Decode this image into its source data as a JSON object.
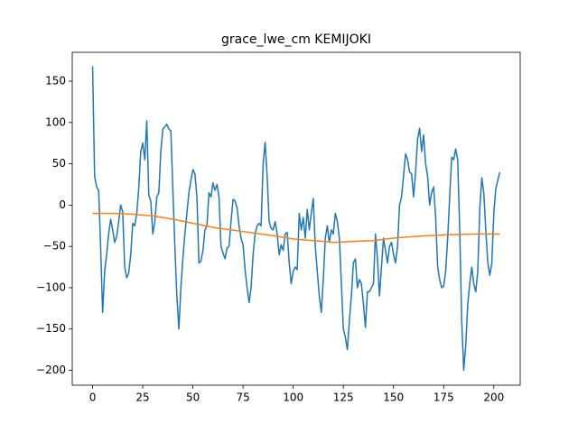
{
  "chart_data": {
    "type": "line",
    "title": "grace_lwe_cm KEMIJOKI",
    "xlim": [
      -10.15,
      213.15
    ],
    "ylim": [
      -218,
      185
    ],
    "xticks": [
      0,
      25,
      50,
      75,
      100,
      125,
      150,
      175,
      200
    ],
    "yticks": [
      {
        "value": -200,
        "label": "−200"
      },
      {
        "value": -150,
        "label": "−150"
      },
      {
        "value": -100,
        "label": "−100"
      },
      {
        "value": -50,
        "label": "−50"
      },
      0,
      50,
      100,
      150
    ],
    "series": [
      {
        "color": "#1f77b4",
        "x": [
          0,
          1,
          2,
          3,
          4,
          5,
          6,
          7,
          8,
          9,
          10,
          11,
          12,
          13,
          14,
          15,
          16,
          17,
          18,
          19,
          20,
          21,
          22,
          23,
          24,
          25,
          26,
          27,
          28,
          29,
          30,
          31,
          32,
          33,
          34,
          35,
          36,
          37,
          38,
          39,
          40,
          41,
          42,
          43,
          44,
          45,
          46,
          47,
          48,
          49,
          50,
          51,
          52,
          53,
          54,
          55,
          56,
          57,
          58,
          59,
          60,
          61,
          62,
          63,
          64,
          65,
          66,
          67,
          68,
          69,
          70,
          71,
          72,
          73,
          74,
          75,
          76,
          77,
          78,
          79,
          80,
          81,
          82,
          83,
          84,
          85,
          86,
          87,
          88,
          89,
          90,
          91,
          92,
          93,
          94,
          95,
          96,
          97,
          98,
          99,
          100,
          101,
          102,
          103,
          104,
          105,
          106,
          107,
          108,
          109,
          110,
          111,
          112,
          113,
          114,
          115,
          116,
          117,
          118,
          119,
          120,
          121,
          122,
          123,
          124,
          125,
          126,
          127,
          128,
          129,
          130,
          131,
          132,
          133,
          134,
          135,
          136,
          137,
          138,
          139,
          140,
          141,
          142,
          143,
          144,
          145,
          146,
          147,
          148,
          149,
          150,
          151,
          152,
          153,
          154,
          155,
          156,
          157,
          158,
          159,
          160,
          161,
          162,
          163,
          164,
          165,
          166,
          167,
          168,
          169,
          170,
          171,
          172,
          173,
          174,
          175,
          176,
          177,
          178,
          179,
          180,
          181,
          182,
          183,
          184,
          185,
          186,
          187,
          188,
          189,
          190,
          191,
          192,
          193,
          194,
          195,
          196,
          197,
          198,
          199,
          200,
          201,
          202,
          203
        ],
        "values": [
          168,
          35,
          22,
          18,
          -50,
          -130,
          -80,
          -60,
          -35,
          -17,
          -30,
          -45,
          -38,
          -20,
          0,
          -8,
          -75,
          -88,
          -82,
          -60,
          -22,
          -25,
          -10,
          20,
          65,
          75,
          55,
          102,
          12,
          5,
          -35,
          -20,
          10,
          15,
          65,
          92,
          95,
          98,
          92,
          90,
          20,
          -50,
          -110,
          -150,
          -100,
          -65,
          -35,
          -10,
          15,
          30,
          43,
          38,
          10,
          -70,
          -68,
          -55,
          -30,
          -25,
          15,
          10,
          27,
          18,
          25,
          10,
          -50,
          -58,
          -65,
          -52,
          -50,
          -20,
          7,
          5,
          -3,
          -25,
          -40,
          -48,
          -78,
          -100,
          -118,
          -100,
          -60,
          -35,
          -25,
          -22,
          -25,
          50,
          76,
          35,
          -20,
          -28,
          -30,
          -20,
          -35,
          -60,
          -48,
          -55,
          -35,
          -33,
          -70,
          -95,
          -80,
          -75,
          -78,
          -10,
          -30,
          -15,
          -40,
          -5,
          -30,
          -10,
          8,
          -50,
          -80,
          -110,
          -130,
          -90,
          -40,
          -25,
          -45,
          -30,
          -35,
          -10,
          -20,
          -40,
          -95,
          -150,
          -160,
          -175,
          -140,
          -110,
          -70,
          -65,
          -100,
          -90,
          -95,
          -120,
          -148,
          -105,
          -105,
          -100,
          -95,
          -35,
          -65,
          -110,
          -75,
          -40,
          -55,
          -70,
          -50,
          -45,
          -60,
          -70,
          -50,
          0,
          10,
          35,
          62,
          55,
          40,
          38,
          10,
          40,
          80,
          93,
          65,
          85,
          50,
          35,
          0,
          15,
          22,
          -15,
          -75,
          -90,
          -100,
          -98,
          -80,
          -40,
          10,
          58,
          55,
          68,
          55,
          -30,
          -140,
          -200,
          -170,
          -120,
          -95,
          -75,
          -95,
          -105,
          -80,
          -5,
          33,
          15,
          -30,
          -70,
          -85,
          -70,
          -10,
          20,
          30,
          40
        ]
      },
      {
        "color": "#ff7f0e",
        "x": [
          0,
          10,
          20,
          30,
          40,
          50,
          60,
          75,
          90,
          100,
          110,
          120,
          130,
          140,
          150,
          160,
          175,
          190,
          203
        ],
        "values": [
          -10,
          -10,
          -11,
          -13,
          -17,
          -22,
          -27,
          -32,
          -37,
          -41,
          -43,
          -45,
          -44,
          -43,
          -40,
          -38,
          -36,
          -35,
          -35
        ]
      }
    ]
  }
}
